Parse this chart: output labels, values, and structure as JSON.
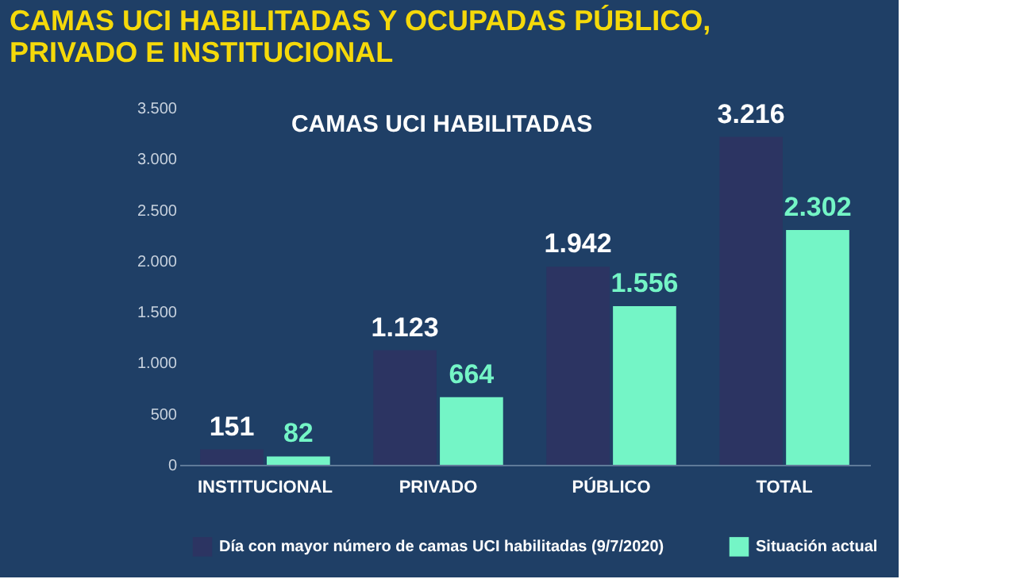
{
  "chart_data": {
    "type": "bar",
    "title": "CAMAS UCI HABILITADAS Y OCUPADAS PÚBLICO, PRIVADO E INSTITUCIONAL",
    "annotations": [
      "CAMAS UCI HABILITADAS"
    ],
    "categories": [
      "INSTITUCIONAL",
      "PRIVADO",
      "PÚBLICO",
      "TOTAL"
    ],
    "series": [
      {
        "name": "Día con mayor número de camas UCI habilitadas (9/7/2020)",
        "color": "#2c3462",
        "values": [
          151,
          1123,
          1942,
          3216
        ],
        "value_labels": [
          "151",
          "1.123",
          "1.942",
          "3.216"
        ]
      },
      {
        "name": "Situación actual",
        "color": "#74f5c6",
        "values": [
          82,
          664,
          1556,
          2302
        ],
        "value_labels": [
          "82",
          "664",
          "1.556",
          "2.302"
        ]
      }
    ],
    "ylim": [
      0,
      3500
    ],
    "yticks": [
      0,
      {
        "value": 500,
        "label": "500"
      },
      {
        "value": 1000,
        "label": "1.000"
      },
      {
        "value": 1500,
        "label": "1.500"
      },
      {
        "value": 2000,
        "label": "2.000"
      },
      {
        "value": 2500,
        "label": "2.500"
      },
      {
        "value": 3000,
        "label": "3.000"
      },
      {
        "value": 3500,
        "label": "3.500"
      }
    ],
    "grid": false,
    "legend": "bottom"
  }
}
